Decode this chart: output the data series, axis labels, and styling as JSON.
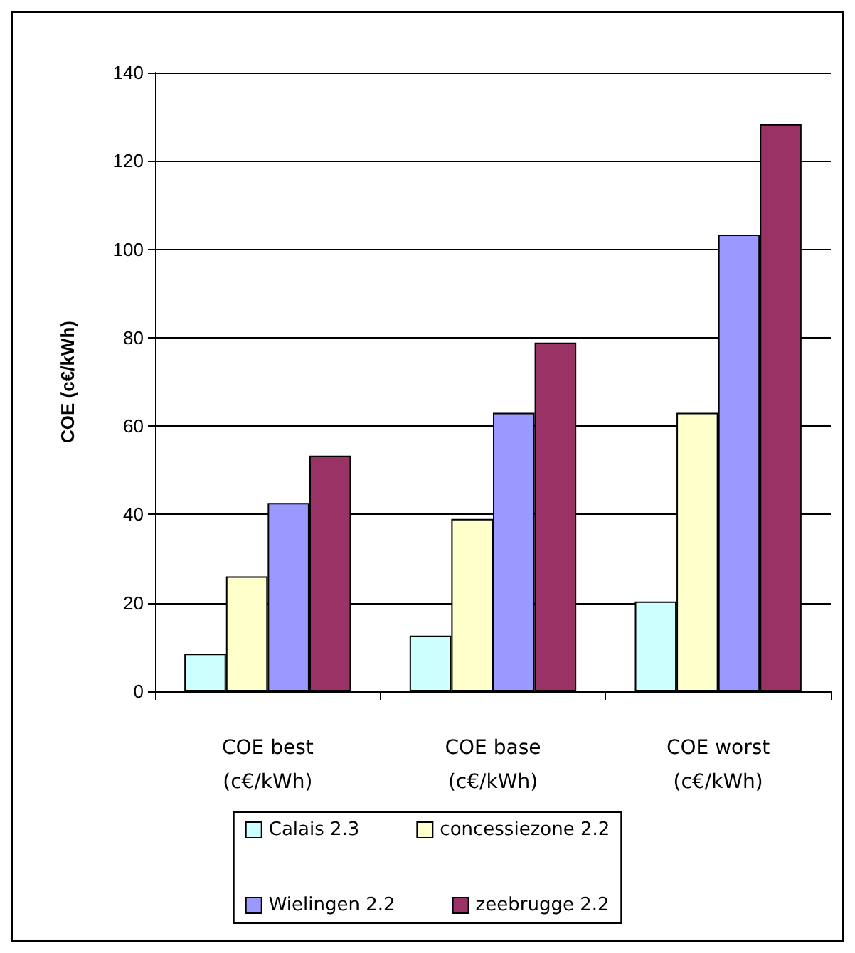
{
  "chart_data": {
    "type": "bar",
    "ylabel": "COE (c€/kWh)",
    "categories": [
      "COE best\n(c€/kWh)",
      "COE base\n(c€/kWh)",
      "COE worst\n(c€/kWh)"
    ],
    "series": [
      {
        "name": "Calais 2.3",
        "color": "#ccffff",
        "values": [
          8.5,
          12.6,
          20.3
        ]
      },
      {
        "name": "concessiezone 2.2",
        "color": "#ffffcc",
        "values": [
          26,
          39,
          63
        ]
      },
      {
        "name": "Wielingen 2.2",
        "color": "#9999ff",
        "values": [
          42.6,
          63,
          103.3
        ]
      },
      {
        "name": "zeebrugge 2.2",
        "color": "#993366",
        "values": [
          53.3,
          78.9,
          128.3
        ]
      }
    ],
    "ylim": [
      0,
      140
    ],
    "yticks": [
      0,
      20,
      40,
      60,
      80,
      100,
      120,
      140
    ],
    "grid": "y",
    "legend": "bottom"
  }
}
